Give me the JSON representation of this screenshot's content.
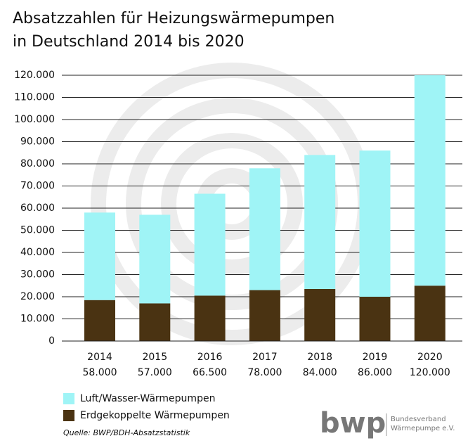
{
  "chart_data": {
    "type": "stacked_bar",
    "title": [
      "Absatzzahlen für Heizungswärmepumpen",
      "in Deutschland 2014 bis 2020"
    ],
    "categories": [
      "2014",
      "2015",
      "2016",
      "2017",
      "2018",
      "2019",
      "2020"
    ],
    "series": [
      {
        "name": "Erdgekoppelte Wärmepumpen",
        "color": "#4a3312",
        "values": [
          18500,
          17000,
          20500,
          23000,
          23500,
          20000,
          25000
        ]
      },
      {
        "name": "Luft/Wasser-Wärmepumpen",
        "color": "#9ff4f6",
        "values": [
          39500,
          40000,
          46000,
          55000,
          60500,
          66000,
          95000
        ]
      }
    ],
    "totals": {
      "values": [
        58000,
        57000,
        66500,
        78000,
        84000,
        86000,
        120000
      ],
      "value_labels": [
        "58.000",
        "57.000",
        "66.500",
        "78.000",
        "84.000",
        "86.000",
        "120.000"
      ]
    },
    "legend_order": [
      1,
      0
    ],
    "ylim": [
      0,
      120000
    ],
    "yticks": [
      0,
      {
        "value": 10000,
        "label": "10.000"
      },
      {
        "value": 20000,
        "label": "20.000"
      },
      {
        "value": 30000,
        "label": "30.000"
      },
      {
        "value": 40000,
        "label": "40.000"
      },
      {
        "value": 50000,
        "label": "50.000"
      },
      {
        "value": 60000,
        "label": "60.000"
      },
      {
        "value": 70000,
        "label": "70.000"
      },
      {
        "value": 80000,
        "label": "80.000"
      },
      {
        "value": 90000,
        "label": "90.000"
      },
      {
        "value": 100000,
        "label": "100.000"
      },
      {
        "value": 110000,
        "label": "110.000"
      },
      {
        "value": 120000,
        "label": "120.000"
      }
    ],
    "grid": true,
    "source": "Quelle: BWP/BDH-Absatzstatistik"
  },
  "logo": {
    "mark": "bwp",
    "line1": "Bundesverband",
    "line2": "Wärmepumpe e.V."
  }
}
